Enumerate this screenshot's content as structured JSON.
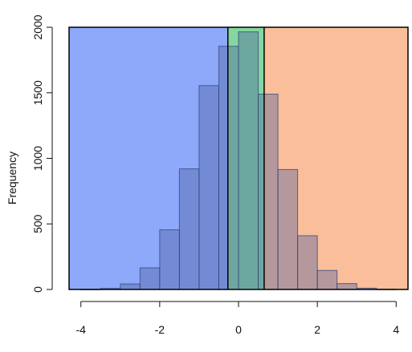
{
  "chart_data": {
    "type": "bar",
    "subtype": "histogram",
    "title": "",
    "xlabel": "",
    "ylabel": "Frequency",
    "xlim": [
      -4.3,
      4.3
    ],
    "ylim": [
      0,
      2000
    ],
    "x_ticks": [
      -4,
      -2,
      0,
      2,
      4
    ],
    "y_ticks": [
      0,
      500,
      1000,
      1500,
      2000
    ],
    "bin_width": 0.5,
    "bins": [
      {
        "x0": -4.0,
        "x1": -3.5,
        "value": 1
      },
      {
        "x0": -3.5,
        "x1": -3.0,
        "value": 8
      },
      {
        "x0": -3.0,
        "x1": -2.5,
        "value": 42
      },
      {
        "x0": -2.5,
        "x1": -2.0,
        "value": 165
      },
      {
        "x0": -2.0,
        "x1": -1.5,
        "value": 455
      },
      {
        "x0": -1.5,
        "x1": -1.0,
        "value": 920
      },
      {
        "x0": -1.0,
        "x1": -0.5,
        "value": 1555
      },
      {
        "x0": -0.5,
        "x1": 0.0,
        "value": 1855
      },
      {
        "x0": 0.0,
        "x1": 0.5,
        "value": 1965
      },
      {
        "x0": 0.5,
        "x1": 1.0,
        "value": 1490
      },
      {
        "x0": 1.0,
        "x1": 1.5,
        "value": 915
      },
      {
        "x0": 1.5,
        "x1": 2.0,
        "value": 410
      },
      {
        "x0": 2.0,
        "x1": 2.5,
        "value": 145
      },
      {
        "x0": 2.5,
        "x1": 3.0,
        "value": 45
      },
      {
        "x0": 3.0,
        "x1": 3.5,
        "value": 10
      },
      {
        "x0": 3.5,
        "x1": 4.0,
        "value": 2
      }
    ],
    "regions": [
      {
        "x0": -4.3,
        "x1": -0.27,
        "color": "#8EA8FA"
      },
      {
        "x0": -0.27,
        "x1": 0.65,
        "color": "#84D7A0"
      },
      {
        "x0": 0.65,
        "x1": 4.3,
        "color": "#FBBE9A"
      }
    ],
    "bar_overlay_color": "#4A5F9E",
    "bar_border_color": "#3A4A7C",
    "grid": false,
    "legend": "none"
  }
}
